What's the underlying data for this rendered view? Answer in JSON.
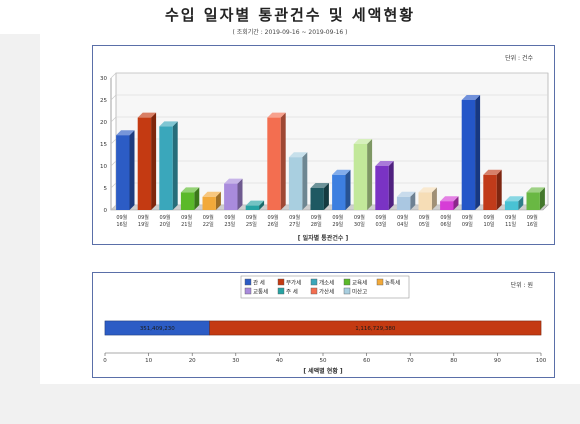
{
  "title": "수입 일자별 통관건수 및 세액현황",
  "period": "( 조회기간 : 2019-09-16 ~ 2019-09-16 )",
  "chart_data": [
    {
      "type": "bar",
      "unit_label": "단위 : 건수",
      "caption": "[ 일자별 통관건수 ]",
      "ylim": [
        0,
        30
      ],
      "yticks": [
        0,
        5,
        10,
        15,
        20,
        25,
        30
      ],
      "grid": true,
      "categories": [
        [
          "09월",
          "16일"
        ],
        [
          "09월",
          "19일"
        ],
        [
          "09월",
          "20일"
        ],
        [
          "09월",
          "21일"
        ],
        [
          "09월",
          "22일"
        ],
        [
          "09월",
          "23일"
        ],
        [
          "09월",
          "25일"
        ],
        [
          "09월",
          "26일"
        ],
        [
          "09월",
          "27일"
        ],
        [
          "09월",
          "28일"
        ],
        [
          "09월",
          "29일"
        ],
        [
          "09월",
          "30일"
        ],
        [
          "09월",
          "03일"
        ],
        [
          "09월",
          "04일"
        ],
        [
          "09월",
          "05일"
        ],
        [
          "09월",
          "06일"
        ],
        [
          "09월",
          "09일"
        ],
        [
          "09월",
          "10일"
        ],
        [
          "09월",
          "11일"
        ],
        [
          "09월",
          "16일"
        ]
      ],
      "values": [
        17,
        21,
        19,
        4,
        3,
        6,
        1,
        21,
        12,
        5,
        8,
        15,
        10,
        3,
        4,
        2,
        25,
        8,
        2,
        4
      ],
      "colors": [
        "#2c5cc5",
        "#c43a12",
        "#3aa7bb",
        "#5bb92a",
        "#f2a93a",
        "#a98bdc",
        "#27a3a3",
        "#f36e50",
        "#a9cfe0",
        "#1e5962",
        "#3d7fe0",
        "#c2e89a",
        "#7a33c4",
        "#aac7e1",
        "#f6ddb6",
        "#d63dd6",
        "#2456c8",
        "#c13b1a",
        "#49c2d4",
        "#69b843"
      ]
    },
    {
      "type": "bar",
      "orientation": "horizontal",
      "stacked": true,
      "unit_label": "단위 : 원",
      "caption": "[ 세액별 현황 ]",
      "xlim": [
        0,
        100
      ],
      "xticks": [
        0,
        10,
        20,
        30,
        40,
        50,
        60,
        70,
        80,
        90,
        100
      ],
      "legend": [
        {
          "name": "관 세",
          "color": "#2c5cc5"
        },
        {
          "name": "부가세",
          "color": "#c43a12"
        },
        {
          "name": "개소세",
          "color": "#3aa7bb"
        },
        {
          "name": "교육세",
          "color": "#5bb92a"
        },
        {
          "name": "농특세",
          "color": "#f2a93a"
        },
        {
          "name": "교통세",
          "color": "#a98bdc"
        },
        {
          "name": "주 세",
          "color": "#27a3a3"
        },
        {
          "name": "가산세",
          "color": "#f36e50"
        },
        {
          "name": "미산고",
          "color": "#a9cfe0"
        }
      ],
      "segments": [
        {
          "series": "관 세",
          "label": "351,409,230",
          "value": 24,
          "color": "#2c5cc5"
        },
        {
          "series": "부가세",
          "label": "1,116,729,380",
          "value": 76,
          "color": "#c43a12"
        }
      ]
    }
  ]
}
